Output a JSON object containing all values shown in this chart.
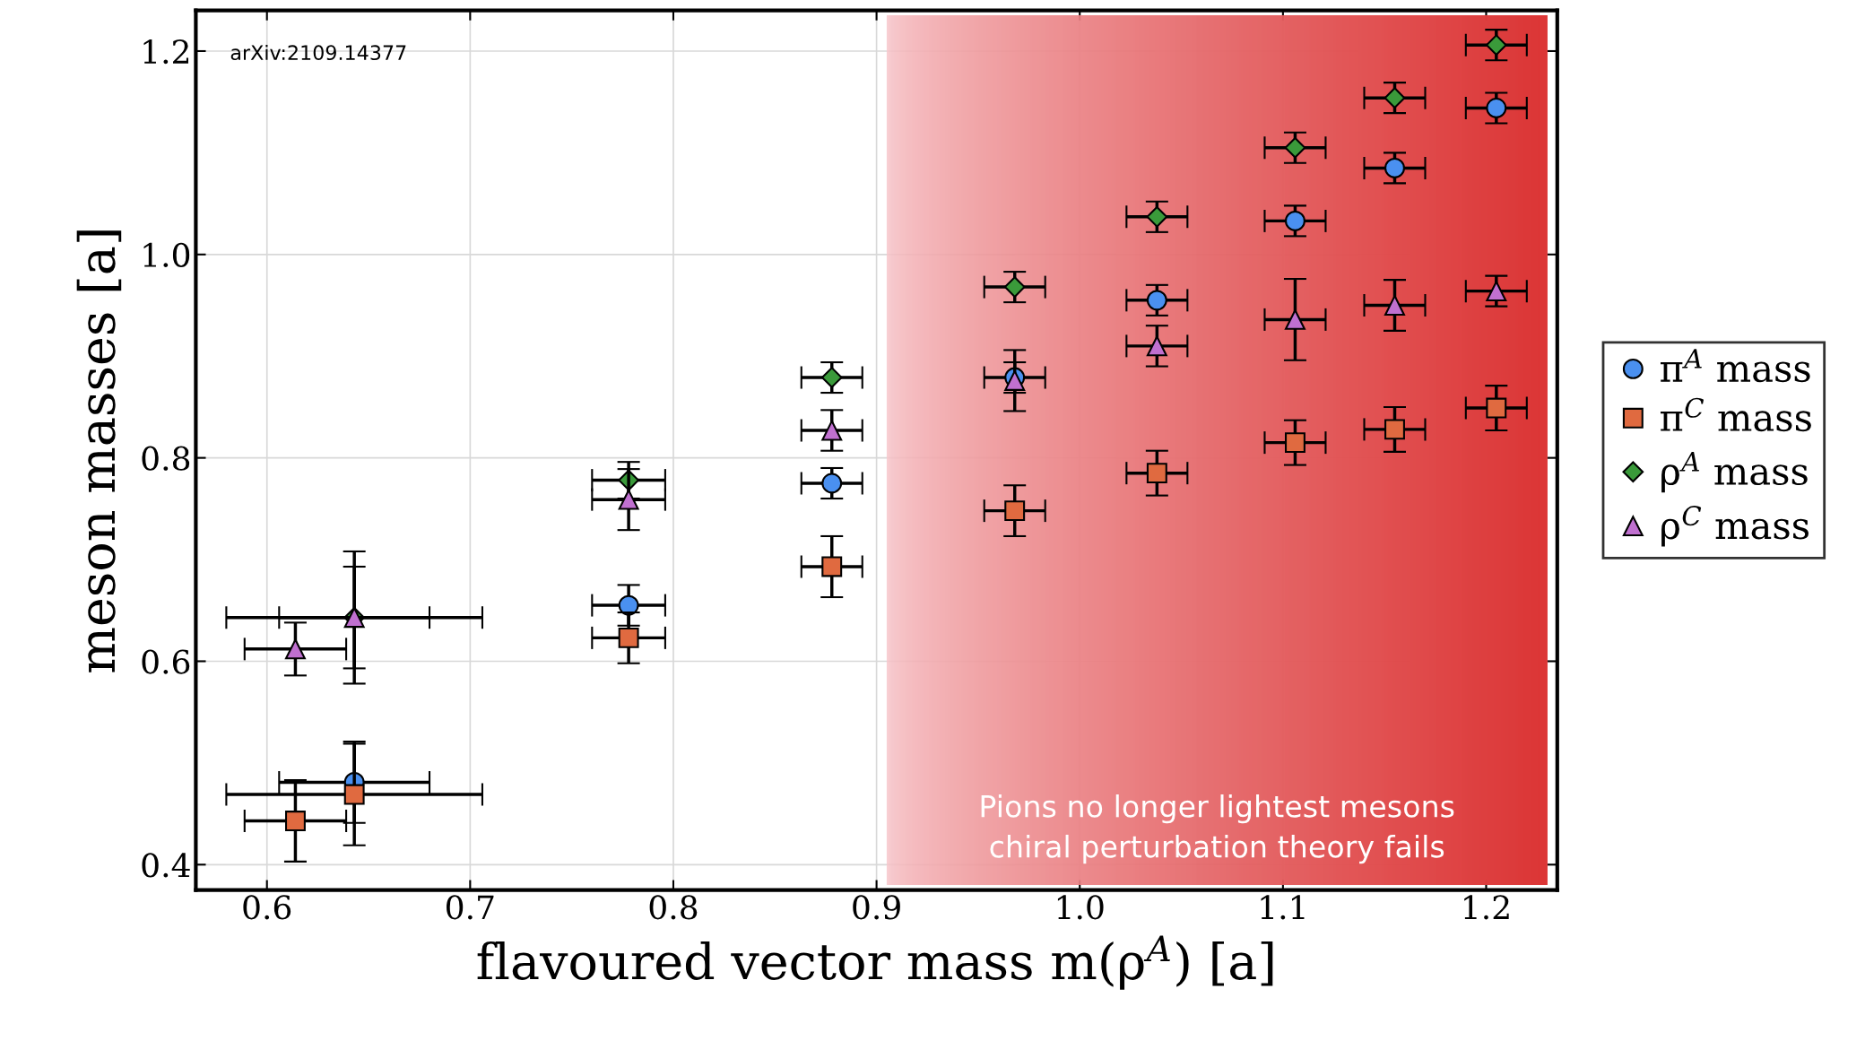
{
  "chart_data": {
    "type": "scatter",
    "xlabel": "flavoured vector mass m(ρ$^{A}$) [a]",
    "ylabel": "meson masses [a]",
    "xlim": [
      0.565,
      1.235
    ],
    "ylim": [
      0.375,
      1.24
    ],
    "xticks": [
      0.6,
      0.7,
      0.8,
      0.9,
      {
        "value": 1.0,
        "label": "1.0"
      },
      1.1,
      1.2
    ],
    "yticks": [
      0.4,
      0.6,
      0.8,
      {
        "value": 1.0,
        "label": "1.0"
      },
      1.2
    ],
    "grid": true,
    "legend": "right",
    "series": [
      {
        "name": "π$^{A}$ mass",
        "color": "#4a90f0",
        "marker": "circle",
        "x": [
          null,
          0.643,
          0.778,
          0.878,
          0.968,
          1.038,
          1.106,
          1.155,
          1.205
        ],
        "values": [
          null,
          0.481,
          0.655,
          0.775,
          0.879,
          0.955,
          1.033,
          1.085,
          1.144
        ],
        "errors": [
          null,
          0.04,
          0.02,
          0.015,
          0.015,
          0.015,
          0.015,
          0.015,
          0.015
        ],
        "xerrors": [
          null,
          0.037,
          0.018,
          0.015,
          0.015,
          0.015,
          0.015,
          0.015,
          0.015
        ]
      },
      {
        "name": "π$^{C}$ mass",
        "color": "#e06a40",
        "marker": "square",
        "x": [
          0.614,
          0.643,
          0.778,
          0.878,
          0.968,
          1.038,
          1.106,
          1.155,
          1.205
        ],
        "values": [
          0.443,
          0.469,
          0.623,
          0.693,
          0.748,
          0.785,
          0.815,
          0.828,
          0.849
        ],
        "errors": [
          0.04,
          0.05,
          0.025,
          0.03,
          0.025,
          0.022,
          0.022,
          0.022,
          0.022
        ],
        "xerrors": [
          0.025,
          0.063,
          0.018,
          0.015,
          0.015,
          0.015,
          0.015,
          0.015,
          0.015
        ]
      },
      {
        "name": "ρ$^{A}$ mass",
        "color": "#3a9a3a",
        "marker": "diamond",
        "x": [
          null,
          0.643,
          0.778,
          0.878,
          0.968,
          1.038,
          1.106,
          1.155,
          1.205
        ],
        "values": [
          null,
          0.643,
          0.778,
          0.879,
          0.968,
          1.037,
          1.105,
          1.154,
          1.206
        ],
        "errors": [
          null,
          0.05,
          0.018,
          0.015,
          0.015,
          0.015,
          0.015,
          0.015,
          0.015
        ],
        "xerrors": [
          null,
          0.037,
          0.018,
          0.015,
          0.015,
          0.015,
          0.015,
          0.015,
          0.015
        ]
      },
      {
        "name": "ρ$^{C}$ mass",
        "color": "#c070d0",
        "marker": "triangle",
        "x": [
          0.614,
          0.643,
          0.778,
          0.878,
          0.968,
          1.038,
          1.106,
          1.155,
          1.205
        ],
        "values": [
          0.612,
          0.643,
          0.759,
          0.827,
          0.876,
          0.91,
          0.936,
          0.95,
          0.964
        ],
        "errors": [
          0.026,
          0.065,
          0.03,
          0.02,
          0.03,
          0.02,
          0.04,
          0.025,
          0.015
        ],
        "xerrors": [
          0.025,
          0.063,
          0.018,
          0.015,
          null,
          0.015,
          0.015,
          0.015,
          0.015
        ]
      }
    ],
    "bands": [
      {
        "axis": "x",
        "from": 0.905,
        "to": 1.23,
        "color": "#dc3535",
        "label": "Pions no longer lightest mesons\nchiral perturbation theory fails"
      }
    ],
    "annotations": [
      "arXiv:2109.14377"
    ]
  }
}
